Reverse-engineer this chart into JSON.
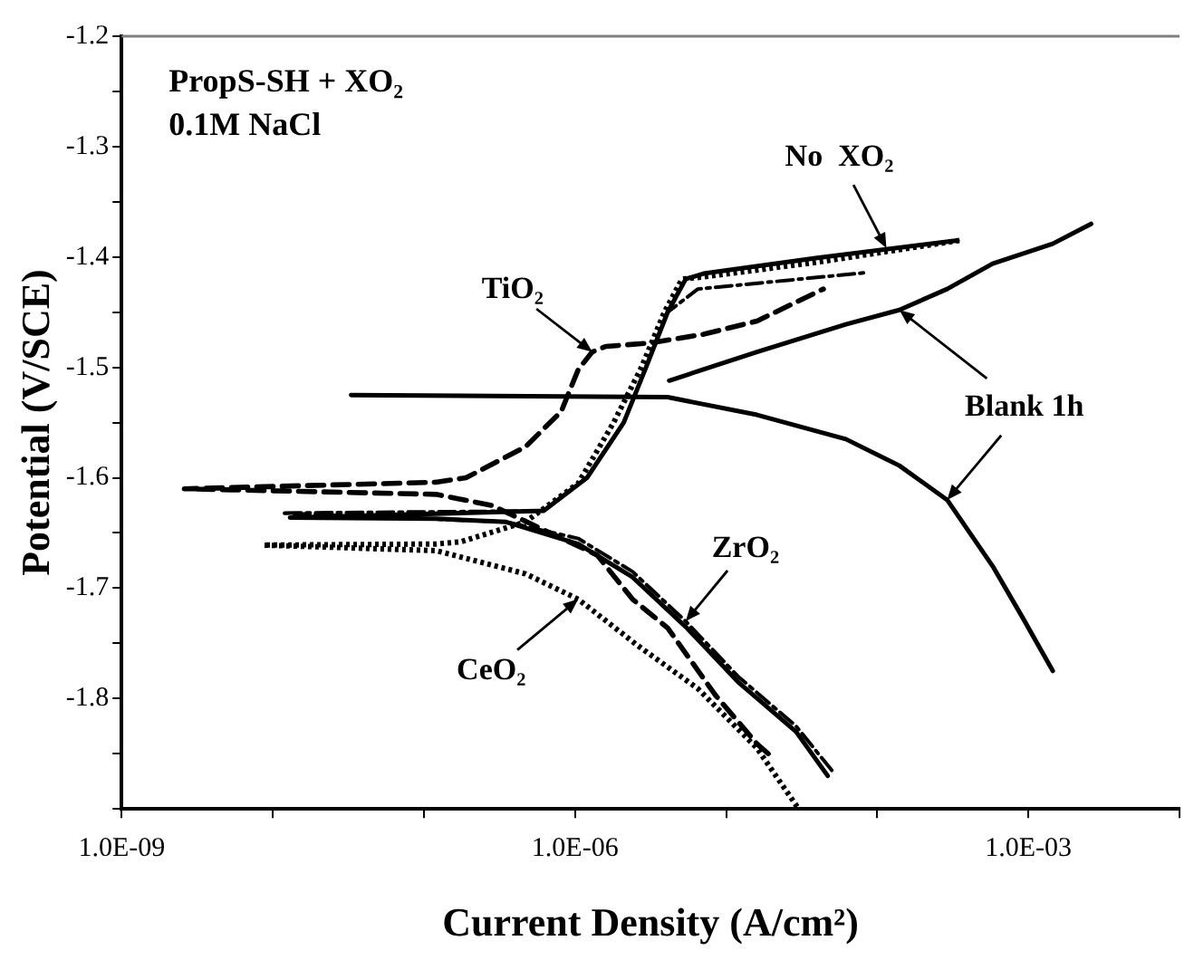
{
  "chart_data": {
    "type": "line",
    "title": "PropS-SH + XO₂",
    "subtitle": "0.1M NaCl",
    "xlabel": "Current Density (A/cm²)",
    "ylabel": "Potential (V/SCE)",
    "log": "x",
    "xlim": [
      1e-09,
      0.01
    ],
    "ylim": [
      -1.9,
      -1.2
    ],
    "xticks": [
      {
        "value": 1e-09,
        "label": "1.0E-09"
      },
      {
        "value": 1e-08,
        "label": null
      },
      {
        "value": 1e-07,
        "label": null
      },
      {
        "value": 1e-06,
        "label": "1.0E-06"
      },
      {
        "value": 1e-05,
        "label": null
      },
      {
        "value": 0.0001,
        "label": null
      },
      {
        "value": 0.001,
        "label": "1.0E-03"
      },
      {
        "value": 0.01,
        "label": null
      }
    ],
    "yticks": [
      -1.2,
      {
        "value": -1.25,
        "label": null
      },
      -1.3,
      {
        "value": -1.35,
        "label": null
      },
      -1.4,
      {
        "value": -1.45,
        "label": null
      },
      -1.5,
      {
        "value": -1.55,
        "label": null
      },
      -1.6,
      {
        "value": -1.65,
        "label": null
      },
      -1.7,
      {
        "value": -1.75,
        "label": null
      },
      -1.8,
      {
        "value": -1.85,
        "label": null
      },
      {
        "value": -1.9,
        "label": null
      }
    ],
    "grid": false,
    "legend": false,
    "marker": "none",
    "series": [
      {
        "color": "#000000",
        "line_style": "solid",
        "x": [
          3.3e-08,
          4.1e-06,
          1.6e-05,
          6.2e-05,
          0.00014,
          0.00029,
          0.00058,
          0.00091,
          0.00145,
          null,
          4.2e-06,
          1.6e-05,
          6.2e-05,
          0.00014,
          0.00029,
          0.00058,
          0.00145,
          0.0026
        ],
        "values": [
          -1.525,
          -1.527,
          -1.543,
          -1.565,
          -1.589,
          -1.62,
          -1.68,
          -1.726,
          -1.775,
          null,
          -1.512,
          -1.486,
          -1.461,
          -1.448,
          -1.429,
          -1.406,
          -1.388,
          -1.37
        ]
      },
      {
        "color": "#000000",
        "line_style": "solid",
        "x": [
          4.7e-05,
          2.9e-05,
          1.2e-05,
          5.4e-06,
          2.4e-06,
          1.05e-06,
          3.5e-07,
          1.2e-07,
          1.3e-08,
          6.2e-07,
          1.2e-06,
          2.1e-06,
          2.95e-06,
          4.1e-06,
          5.4e-06,
          7.1e-06,
          3.9e-05,
          0.00034
        ],
        "values": [
          -1.87,
          -1.83,
          -1.785,
          -1.735,
          -1.69,
          -1.66,
          -1.64,
          -1.637,
          -1.636,
          -1.63,
          -1.6,
          -1.55,
          -1.5,
          -1.45,
          -1.42,
          -1.415,
          -1.401,
          -1.385
        ]
      },
      {
        "color": "#000000",
        "line_style": "dashdot",
        "x": [
          5e-05,
          2.9e-05,
          1.2e-05,
          5.4e-06,
          2.4e-06,
          1.05e-06,
          3.5e-07,
          1.15e-08,
          6.2e-07,
          1.2e-06,
          2.1e-06,
          2.95e-06,
          4.1e-06,
          6.5e-06,
          8.7e-05
        ],
        "values": [
          -1.865,
          -1.825,
          -1.78,
          -1.73,
          -1.685,
          -1.655,
          -1.64,
          -1.632,
          -1.63,
          -1.6,
          -1.55,
          -1.5,
          -1.45,
          -1.429,
          -1.414
        ]
      },
      {
        "color": "#000000",
        "line_style": "dashed",
        "x": [
          1.9e-05,
          1.6e-05,
          8.5e-06,
          4.1e-06,
          2.4e-06,
          1.4e-06,
          4.8e-07,
          2.8e-07,
          1.2e-07,
          2.6e-09,
          1.2e-07,
          1.9e-07,
          4.7e-07,
          8.1e-07,
          1.05e-06,
          1.3e-06,
          1.6e-06,
          3.1e-06,
          7.1e-06,
          1.6e-05,
          4.4e-05
        ],
        "values": [
          -1.85,
          -1.841,
          -1.797,
          -1.736,
          -1.71,
          -1.67,
          -1.64,
          -1.625,
          -1.615,
          -1.61,
          -1.604,
          -1.6,
          -1.572,
          -1.54,
          -1.502,
          -1.486,
          -1.481,
          -1.478,
          -1.47,
          -1.458,
          -1.429
        ]
      },
      {
        "color": "#000000",
        "line_style": "dotted",
        "x": [
          2.95e-05,
          1.6e-05,
          6.5e-06,
          2.6e-06,
          1.05e-06,
          4.7e-07,
          1.2e-07,
          8.7e-09,
          1.2e-07,
          1.75e-07,
          4.7e-07,
          1.05e-06,
          1.8e-06,
          2.75e-06,
          3.9e-06,
          5.1e-06,
          7.1e-06,
          3.9e-05,
          0.00035
        ],
        "values": [
          -1.898,
          -1.845,
          -1.791,
          -1.752,
          -1.71,
          -1.687,
          -1.666,
          -1.661,
          -1.66,
          -1.658,
          -1.64,
          -1.605,
          -1.55,
          -1.5,
          -1.45,
          -1.42,
          -1.418,
          -1.405,
          -1.385
        ]
      }
    ],
    "annotations": [
      {
        "text": "No  XO₂",
        "x": 0.000115,
        "y": -1.392
      },
      {
        "text": "TiO₂",
        "x": 1.3e-06,
        "y": -1.486
      },
      {
        "text": "Blank 1h",
        "x": 0.00014,
        "y": -1.448
      },
      {
        "text": "ZrO₂",
        "x": 5.4e-06,
        "y": -1.73
      },
      {
        "text": "CeO₂",
        "x": 1.05e-06,
        "y": -1.71
      }
    ]
  }
}
